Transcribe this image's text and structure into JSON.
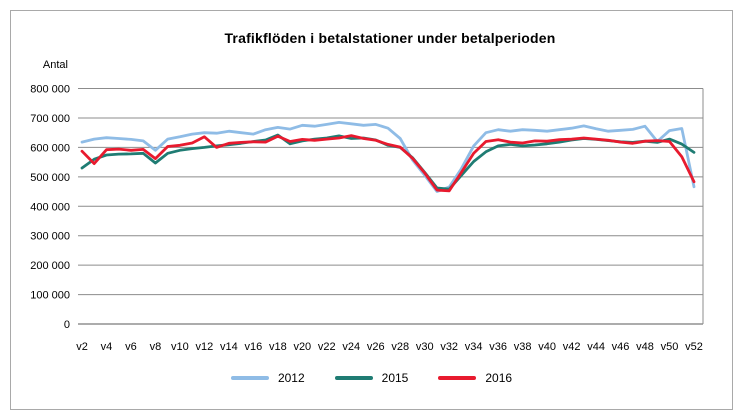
{
  "frame": {
    "title": "Trafikflöden i betalstationer under betalperioden",
    "y_axis_title": "Antal"
  },
  "colors": {
    "background": "#ffffff",
    "outer_border": "#a9a9a9",
    "gridline": "#8c8c8c",
    "axis_line": "#7a7a7a",
    "text": "#000000",
    "series_2012": "#8fbce6",
    "series_2015": "#1f7c73",
    "series_2016": "#e81a2e"
  },
  "chart_data": {
    "type": "line",
    "title": "Trafikflöden i betalstationer under betalperioden",
    "xlabel": "",
    "ylabel": "Antal",
    "ylim": [
      0,
      800000
    ],
    "y_tick_step": 100000,
    "y_tick_labels": [
      "0",
      "100 000",
      "200 000",
      "300 000",
      "400 000",
      "500 000",
      "600 000",
      "700 000",
      "800 000"
    ],
    "grid": "horizontal",
    "legend_position": "bottom",
    "x": [
      2,
      3,
      4,
      5,
      6,
      7,
      8,
      9,
      10,
      11,
      12,
      13,
      14,
      15,
      16,
      17,
      18,
      19,
      20,
      21,
      22,
      23,
      24,
      25,
      26,
      27,
      28,
      29,
      30,
      31,
      32,
      33,
      34,
      35,
      36,
      37,
      38,
      39,
      40,
      41,
      42,
      43,
      44,
      45,
      46,
      47,
      48,
      49,
      50,
      51,
      52
    ],
    "x_tick_labels": [
      "v2",
      "v4",
      "v6",
      "v8",
      "v10",
      "v12",
      "v14",
      "v16",
      "v18",
      "v20",
      "v22",
      "v24",
      "v26",
      "v28",
      "v30",
      "v32",
      "v34",
      "v36",
      "v38",
      "v40",
      "v42",
      "v44",
      "v46",
      "v48",
      "v50",
      "v52"
    ],
    "series": [
      {
        "name": "2012",
        "color": "#8fbce6",
        "values": [
          618000,
          628000,
          633000,
          630000,
          627000,
          622000,
          590000,
          628000,
          636000,
          645000,
          650000,
          648000,
          655000,
          650000,
          645000,
          660000,
          668000,
          662000,
          675000,
          672000,
          678000,
          685000,
          680000,
          675000,
          678000,
          665000,
          630000,
          557000,
          505000,
          450000,
          465000,
          528000,
          605000,
          650000,
          660000,
          655000,
          660000,
          658000,
          655000,
          660000,
          665000,
          673000,
          663000,
          655000,
          658000,
          661000,
          672000,
          620000,
          657000,
          664000,
          466000
        ]
      },
      {
        "name": "2015",
        "color": "#1f7c73",
        "values": [
          530000,
          560000,
          574000,
          577000,
          578000,
          580000,
          547000,
          580000,
          590000,
          596000,
          600000,
          605000,
          609000,
          614000,
          620000,
          625000,
          642000,
          612000,
          622000,
          628000,
          632000,
          639000,
          630000,
          632000,
          625000,
          607000,
          600000,
          565000,
          515000,
          462000,
          458000,
          505000,
          552000,
          585000,
          605000,
          610000,
          605000,
          608000,
          612000,
          618000,
          625000,
          630000,
          627000,
          623000,
          619000,
          617000,
          621000,
          617000,
          628000,
          611000,
          583000
        ]
      },
      {
        "name": "2016",
        "color": "#e81a2e",
        "values": [
          587000,
          545000,
          592000,
          594000,
          590000,
          593000,
          562000,
          603000,
          607000,
          615000,
          636000,
          600000,
          614000,
          617000,
          619000,
          618000,
          638000,
          620000,
          627000,
          624000,
          628000,
          632000,
          640000,
          630000,
          624000,
          610000,
          601000,
          563000,
          513000,
          455000,
          452000,
          515000,
          580000,
          620000,
          626000,
          618000,
          615000,
          622000,
          621000,
          626000,
          628000,
          632000,
          628000,
          624000,
          618000,
          614000,
          621000,
          623000,
          620000,
          568000,
          483000
        ]
      }
    ]
  }
}
